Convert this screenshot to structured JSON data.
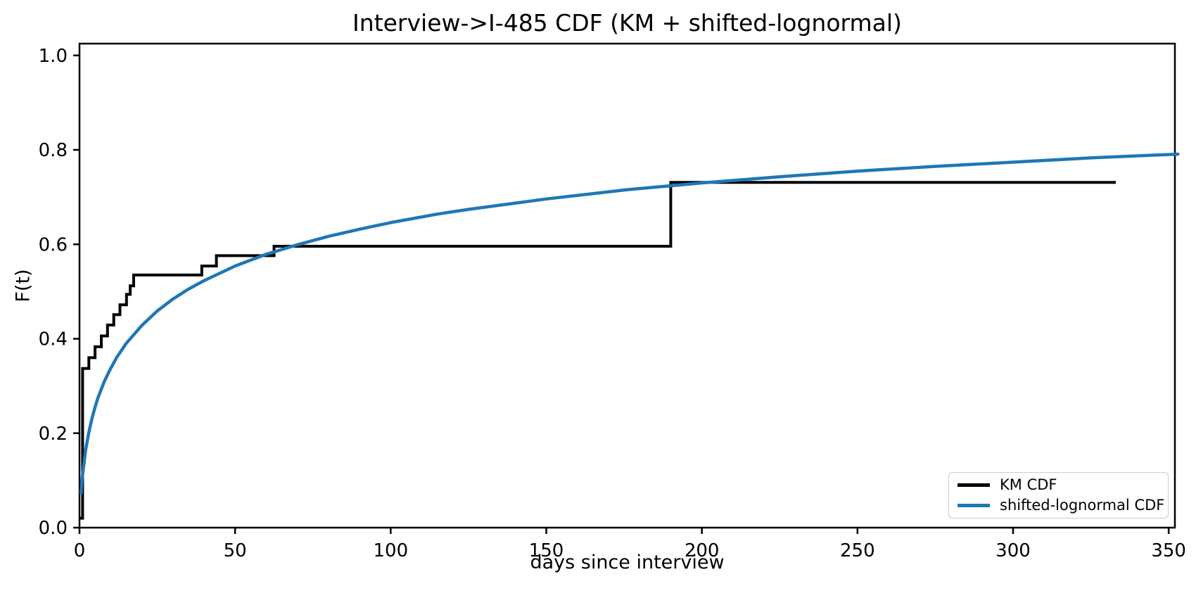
{
  "chart_data": {
    "type": "line",
    "title": "Interview->I-485 CDF (KM + shifted-lognormal)",
    "xlabel": "days since interview",
    "ylabel": "F(t)",
    "xlim": [
      0,
      352
    ],
    "ylim": [
      0,
      1.025
    ],
    "xticks": [
      0,
      50,
      100,
      150,
      200,
      250,
      300,
      350
    ],
    "xtick_labels": [
      "0",
      "50",
      "100",
      "150",
      "200",
      "250",
      "300",
      "350"
    ],
    "yticks": [
      0.0,
      0.2,
      0.4,
      0.6,
      0.8,
      1.0
    ],
    "ytick_labels": [
      "0.0",
      "0.2",
      "0.4",
      "0.6",
      "0.8",
      "1.0"
    ],
    "grid": false,
    "legend_position": "lower right",
    "background_color": "#ffffff",
    "axis_color": "#000000",
    "series": [
      {
        "name": "KM CDF",
        "color": "#000000",
        "style": "step",
        "line_width": 4,
        "points": [
          [
            0,
            0.02
          ],
          [
            1,
            0.337
          ],
          [
            3,
            0.36
          ],
          [
            5,
            0.383
          ],
          [
            7,
            0.406
          ],
          [
            9,
            0.429
          ],
          [
            11,
            0.451
          ],
          [
            13,
            0.472
          ],
          [
            15.1,
            0.494
          ],
          [
            16.3,
            0.512
          ],
          [
            17.4,
            0.535
          ],
          [
            39.3,
            0.554
          ],
          [
            44,
            0.576
          ],
          [
            62.5,
            0.596
          ],
          [
            190,
            0.731
          ]
        ],
        "end_t": 333
      },
      {
        "name": "shifted-lognormal CDF",
        "color": "#1f77b4",
        "style": "smooth",
        "line_width": 4.5,
        "points": [
          [
            0.5,
            0.073
          ],
          [
            0.8,
            0.1
          ],
          [
            1,
            0.112
          ],
          [
            1.5,
            0.139
          ],
          [
            2,
            0.165
          ],
          [
            3,
            0.202
          ],
          [
            4,
            0.231
          ],
          [
            5,
            0.255
          ],
          [
            6,
            0.276
          ],
          [
            8,
            0.31
          ],
          [
            10,
            0.337
          ],
          [
            12,
            0.361
          ],
          [
            15,
            0.39
          ],
          [
            20,
            0.428
          ],
          [
            25,
            0.459
          ],
          [
            30,
            0.484
          ],
          [
            35,
            0.505
          ],
          [
            40,
            0.523
          ],
          [
            50,
            0.554
          ],
          [
            60,
            0.579
          ],
          [
            70,
            0.599
          ],
          [
            80,
            0.617
          ],
          [
            90,
            0.632
          ],
          [
            100,
            0.646
          ],
          [
            115,
            0.664
          ],
          [
            125,
            0.674
          ],
          [
            150,
            0.696
          ],
          [
            175,
            0.715
          ],
          [
            200,
            0.73
          ],
          [
            225,
            0.743
          ],
          [
            250,
            0.755
          ],
          [
            275,
            0.765
          ],
          [
            300,
            0.774
          ],
          [
            325,
            0.783
          ],
          [
            353,
            0.791
          ]
        ]
      }
    ]
  }
}
